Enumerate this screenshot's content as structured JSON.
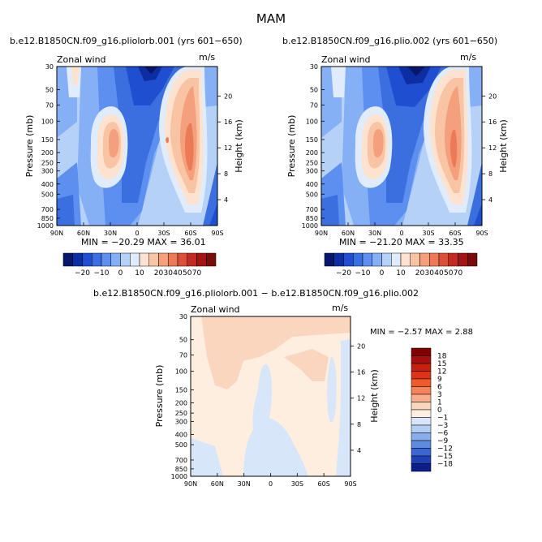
{
  "page": {
    "title": "MAM"
  },
  "chart_data": [
    {
      "type": "heatmap",
      "title": "b.e12.B1850CN.f09_g16.pliolorb.001 (yrs 601−650)",
      "subtitle_left": "Zonal wind",
      "units": "m/s",
      "ylabel": "Pressure (mb)",
      "y2label": "Height (km)",
      "x_ticks": [
        "90N",
        "60N",
        "30N",
        "0",
        "30S",
        "60S",
        "90S"
      ],
      "y_ticks": [
        "30",
        "50",
        "70",
        "100",
        "150",
        "200",
        "250",
        "300",
        "400",
        "500",
        "700",
        "850",
        "1000"
      ],
      "y2_ticks": [
        "20",
        "16",
        "12",
        "8",
        "4"
      ],
      "stats": "MIN = −20.29   MAX =  36.01",
      "min": -20.29,
      "max": 36.01,
      "colorbar_labels": [
        "−20",
        "−10",
        "0",
        "10",
        "20",
        "30",
        "40",
        "50",
        "70"
      ],
      "features": [
        {
          "name": "westerly-jet-nh",
          "lat": 25,
          "p": 150,
          "peak": 30
        },
        {
          "name": "westerly-jet-sh",
          "lat": -55,
          "p": 200,
          "peak": 36
        },
        {
          "name": "easterlies-upper-tropics",
          "lat": -5,
          "p": 30,
          "peak": -20
        }
      ]
    },
    {
      "type": "heatmap",
      "title": "b.e12.B1850CN.f09_g16.plio.002 (yrs 601−650)",
      "subtitle_left": "Zonal wind",
      "units": "m/s",
      "ylabel": "Pressure (mb)",
      "y2label": "Height (km)",
      "x_ticks": [
        "90N",
        "60N",
        "30N",
        "0",
        "30S",
        "60S",
        "90S"
      ],
      "y_ticks": [
        "30",
        "50",
        "70",
        "100",
        "150",
        "200",
        "250",
        "300",
        "400",
        "500",
        "700",
        "850",
        "1000"
      ],
      "y2_ticks": [
        "20",
        "16",
        "12",
        "8",
        "4"
      ],
      "stats": "MIN = −21.20   MAX =  33.35",
      "min": -21.2,
      "max": 33.35,
      "colorbar_labels": [
        "−20",
        "−10",
        "0",
        "10",
        "20",
        "30",
        "40",
        "50",
        "70"
      ],
      "features": [
        {
          "name": "westerly-jet-nh",
          "lat": 25,
          "p": 150,
          "peak": 29
        },
        {
          "name": "westerly-jet-sh",
          "lat": -55,
          "p": 200,
          "peak": 33
        },
        {
          "name": "easterlies-upper-tropics",
          "lat": -5,
          "p": 30,
          "peak": -21
        }
      ]
    },
    {
      "type": "heatmap",
      "title": "b.e12.B1850CN.f09_g16.pliolorb.001  −  b.e12.B1850CN.f09_g16.plio.002",
      "subtitle_left": "Zonal wind",
      "units": "m/s",
      "ylabel": "Pressure (mb)",
      "y2label": "Height (km)",
      "x_ticks": [
        "90N",
        "60N",
        "30N",
        "0",
        "30S",
        "60S",
        "90S"
      ],
      "y_ticks": [
        "30",
        "50",
        "70",
        "100",
        "150",
        "200",
        "250",
        "300",
        "400",
        "500",
        "700",
        "850",
        "1000"
      ],
      "y2_ticks": [
        "20",
        "16",
        "12",
        "8",
        "4"
      ],
      "stats": "MIN =  −2.57   MAX =   2.88",
      "min": -2.57,
      "max": 2.88,
      "colorbar_labels": [
        "18",
        "15",
        "12",
        "9",
        "6",
        "3",
        "1",
        "0",
        "−1",
        "−3",
        "−6",
        "−9",
        "−12",
        "−15",
        "−18"
      ]
    }
  ],
  "colors": {
    "abs_scale": [
      "#08176b",
      "#0d2ea3",
      "#1f4fd0",
      "#3b6fe0",
      "#5c8ff0",
      "#86b0f5",
      "#b5d1f8",
      "#e0ecfb",
      "#fde3cf",
      "#f9c4a4",
      "#f4a07c",
      "#ec7a57",
      "#dd5038",
      "#c42a22",
      "#a01414",
      "#7a0b0b"
    ],
    "diff_scale": [
      "#800000",
      "#a50f0f",
      "#c8200f",
      "#e0341a",
      "#ef5a2c",
      "#f6825a",
      "#f9ad8a",
      "#fbd6bf",
      "#fdeee0",
      "#d8e6f9",
      "#b3cdf3",
      "#8aaeeb",
      "#5e8be0",
      "#3a67d3",
      "#2040b6",
      "#0c1e8a"
    ]
  }
}
